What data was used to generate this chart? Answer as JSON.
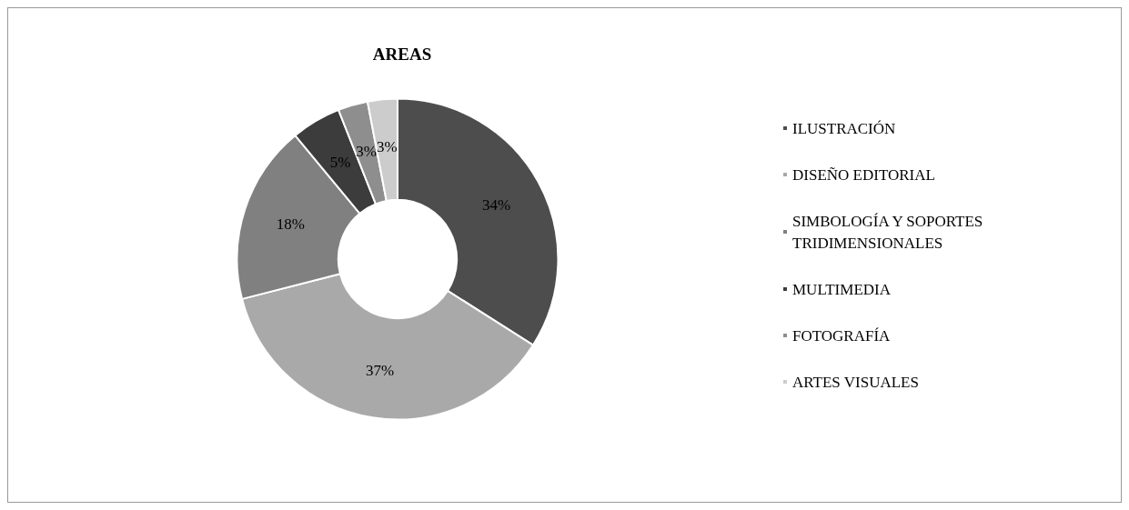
{
  "chart_data": {
    "type": "donut",
    "title": "AREAS",
    "categories": [
      "ILUSTRACIÓN",
      "DISEÑO EDITORIAL",
      "SIMBOLOGÍA Y SOPORTES TRIDIMENSIONALES",
      "MULTIMEDIA",
      "FOTOGRAFÍA",
      "ARTES VISUALES"
    ],
    "values": [
      34,
      37,
      18,
      5,
      3,
      3
    ],
    "colors": [
      "#4d4d4d",
      "#a9a9a9",
      "#808080",
      "#3c3c3c",
      "#8e8e8e",
      "#cccccc"
    ],
    "value_labels": [
      "34%",
      "37%",
      "18%",
      "5%",
      "3%",
      "3%"
    ],
    "legend": "right"
  }
}
